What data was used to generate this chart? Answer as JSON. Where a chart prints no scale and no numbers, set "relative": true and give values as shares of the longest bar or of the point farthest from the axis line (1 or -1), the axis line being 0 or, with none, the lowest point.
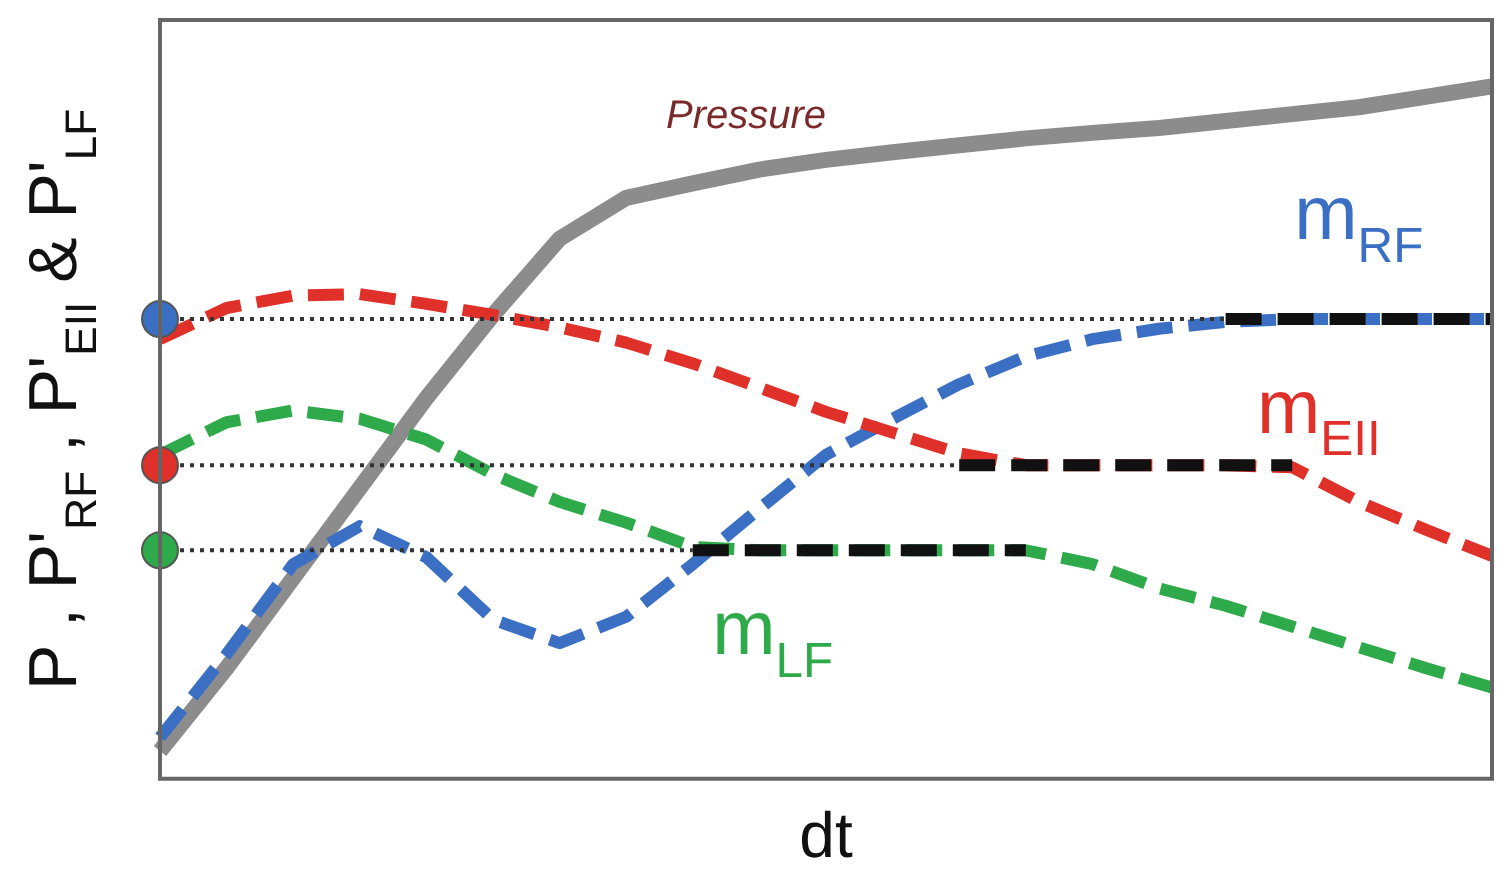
{
  "chart_data": {
    "type": "line",
    "xlabel": "dt",
    "ylabel": "P , P'$_{RF}$ , P'$_{EII}$ & P'$_{LF}$",
    "relative": true,
    "grid": false,
    "legend": false,
    "marker": "none",
    "categories": [
      null,
      null,
      null,
      null,
      null,
      null,
      null,
      null,
      null,
      null,
      null,
      null,
      null,
      null,
      null,
      null,
      null,
      null,
      null,
      null,
      null
    ],
    "series": [
      {
        "name": "Pressure",
        "color": "#8c8c8c",
        "line_style": "solid",
        "values": [
          0.04,
          0.16,
          0.29,
          0.42,
          0.55,
          0.67,
          0.78,
          0.839,
          0.86,
          0.88,
          0.894,
          0.905,
          0.915,
          0.925,
          0.933,
          0.94,
          0.95,
          0.96,
          0.97,
          0.985,
          1
        ]
      },
      {
        "name": "m$_{RF}$",
        "color": "#3a6fc4",
        "line_style": "dashed",
        "values": [
          0.06,
          0.18,
          0.31,
          0.365,
          0.32,
          0.23,
          0.196,
          0.234,
          0.31,
          0.39,
          0.468,
          0.52,
          0.57,
          0.61,
          0.635,
          0.65,
          0.66,
          0.664,
          0.664,
          0.664,
          0.664
        ]
      },
      {
        "name": "m$_{EII}$",
        "color": "#e0302a",
        "line_style": "dashed",
        "values": [
          0.635,
          0.68,
          0.698,
          0.7,
          0.686,
          0.67,
          0.652,
          0.63,
          0.6,
          0.565,
          0.53,
          0.5,
          0.47,
          0.453,
          0.453,
          0.453,
          0.453,
          0.45,
          0.4,
          0.36,
          0.322
        ]
      },
      {
        "name": "m$_{LF}$",
        "color": "#2faa4a",
        "line_style": "dashed",
        "values": [
          0.468,
          0.515,
          0.532,
          0.52,
          0.49,
          0.44,
          0.4,
          0.37,
          0.335,
          0.33,
          0.33,
          0.33,
          0.33,
          0.33,
          0.31,
          0.275,
          0.25,
          0.22,
          0.19,
          0.16,
          0.132
        ]
      },
      {
        "color": "#111111",
        "line_style": "dashed",
        "values": [
          null,
          null,
          null,
          null,
          null,
          null,
          null,
          null,
          null,
          null,
          null,
          null,
          null,
          null,
          null,
          null,
          0.664,
          0.664,
          0.664,
          0.664,
          0.664
        ]
      },
      {
        "color": "#111111",
        "line_style": "dashed",
        "values": [
          null,
          null,
          null,
          null,
          null,
          null,
          null,
          null,
          null,
          null,
          null,
          null,
          0.453,
          0.453,
          0.453,
          0.453,
          0.453,
          0.453,
          null,
          null,
          null
        ]
      },
      {
        "color": "#111111",
        "line_style": "dashed",
        "values": [
          null,
          null,
          null,
          null,
          null,
          null,
          null,
          null,
          0.33,
          0.33,
          0.33,
          0.33,
          0.33,
          0.33,
          null,
          null,
          null,
          null,
          null,
          null,
          null
        ]
      },
      {
        "color": "#333333",
        "line_style": "dotted",
        "values": [
          0.664,
          0.664,
          0.664,
          0.664,
          0.664,
          0.664,
          0.664,
          0.664,
          0.664,
          0.664,
          0.664,
          0.664,
          0.664,
          0.664,
          0.664,
          0.664,
          0.664,
          null,
          null,
          null,
          null
        ]
      },
      {
        "color": "#333333",
        "line_style": "dotted",
        "values": [
          0.453,
          0.453,
          0.453,
          0.453,
          0.453,
          0.453,
          0.453,
          0.453,
          0.453,
          0.453,
          0.453,
          0.453,
          0.453,
          null,
          null,
          null,
          null,
          null,
          null,
          null,
          null
        ]
      },
      {
        "color": "#333333",
        "line_style": "dotted",
        "values": [
          0.33,
          0.33,
          0.33,
          0.33,
          0.33,
          0.33,
          0.33,
          0.33,
          0.33,
          null,
          null,
          null,
          null,
          null,
          null,
          null,
          null,
          null,
          null,
          null,
          null
        ]
      },
      {
        "color": "#3a6fc4",
        "marker": "circle",
        "values": [
          0.664,
          null,
          null,
          null,
          null,
          null,
          null,
          null,
          null,
          null,
          null,
          null,
          null,
          null,
          null,
          null,
          null,
          null,
          null,
          null,
          null
        ]
      },
      {
        "color": "#e0302a",
        "marker": "circle",
        "values": [
          0.453,
          null,
          null,
          null,
          null,
          null,
          null,
          null,
          null,
          null,
          null,
          null,
          null,
          null,
          null,
          null,
          null,
          null,
          null,
          null,
          null
        ]
      },
      {
        "color": "#2faa4a",
        "marker": "circle",
        "values": [
          0.33,
          null,
          null,
          null,
          null,
          null,
          null,
          null,
          null,
          null,
          null,
          null,
          null,
          null,
          null,
          null,
          null,
          null,
          null,
          null,
          null
        ]
      }
    ]
  }
}
